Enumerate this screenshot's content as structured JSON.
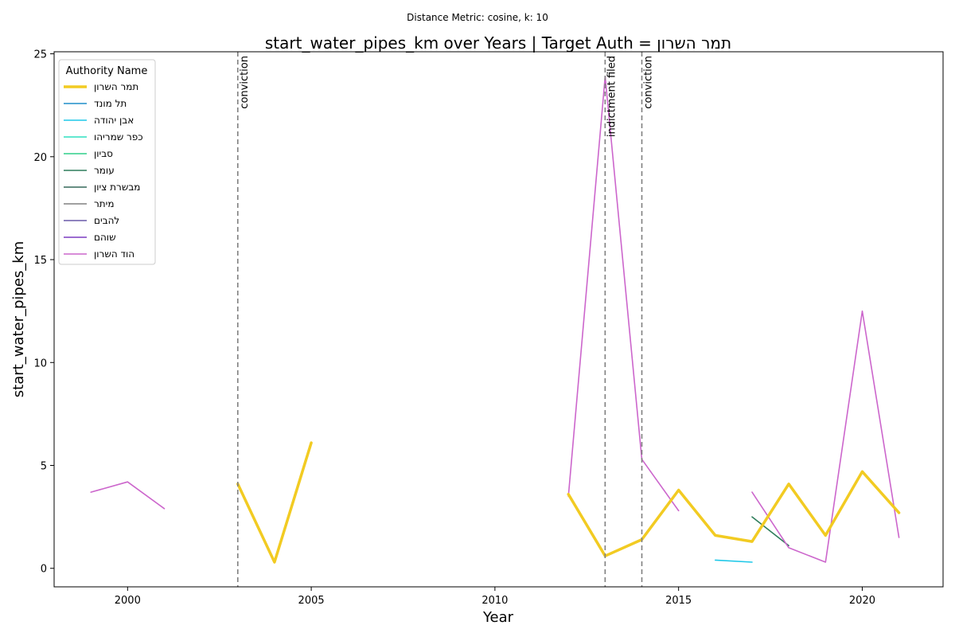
{
  "chart_data": {
    "type": "line",
    "suptitle": "Distance Metric: cosine, k: 10",
    "title": "start_water_pipes_km over Years | Target Auth = תמר השרון",
    "xlabel": "Year",
    "ylabel": "start_water_pipes_km",
    "xlim": [
      1998.0,
      2022.2
    ],
    "ylim": [
      -0.9,
      25.1
    ],
    "xticks": [
      2000,
      2005,
      2010,
      2015,
      2020
    ],
    "yticks": [
      0,
      5,
      10,
      15,
      20,
      25
    ],
    "grid": false,
    "legend": {
      "title": "Authority Name",
      "placement": "top-left"
    },
    "events": [
      {
        "year": 2003,
        "label": "conviction"
      },
      {
        "year": 2013,
        "label": "indictment filed"
      },
      {
        "year": 2014,
        "label": "conviction"
      }
    ],
    "series": [
      {
        "name": "תמר השרון",
        "color": "#f2cb22",
        "width": 3.5,
        "target": true,
        "segments": [
          [
            [
              2003,
              4.1
            ],
            [
              2004,
              0.3
            ],
            [
              2005,
              6.1
            ]
          ],
          [
            [
              2012,
              3.6
            ],
            [
              2013,
              0.6
            ],
            [
              2014,
              1.4
            ],
            [
              2015,
              3.8
            ],
            [
              2016,
              1.6
            ],
            [
              2017,
              1.3
            ],
            [
              2018,
              4.1
            ],
            [
              2019,
              1.6
            ],
            [
              2020,
              4.7
            ],
            [
              2021,
              2.7
            ]
          ]
        ]
      },
      {
        "name": "תל מונד",
        "color": "#1f8dc9",
        "width": 1.6,
        "segments": []
      },
      {
        "name": "אבן יהודה",
        "color": "#1fc8e8",
        "width": 1.6,
        "segments": [
          [
            [
              2016,
              0.4
            ],
            [
              2017,
              0.3
            ]
          ]
        ]
      },
      {
        "name": "כפר שמריהו",
        "color": "#2ee0c0",
        "width": 1.6,
        "segments": []
      },
      {
        "name": "סביון",
        "color": "#2fcf8a",
        "width": 1.6,
        "segments": []
      },
      {
        "name": "עומר",
        "color": "#2e7d5b",
        "width": 1.6,
        "segments": [
          [
            [
              2017,
              2.5
            ],
            [
              2018,
              1.1
            ]
          ]
        ]
      },
      {
        "name": "מבשרת ציון",
        "color": "#35685a",
        "width": 1.6,
        "segments": []
      },
      {
        "name": "מיתר",
        "color": "#808080",
        "width": 1.6,
        "segments": []
      },
      {
        "name": "להבים",
        "color": "#6a5aa8",
        "width": 1.6,
        "segments": []
      },
      {
        "name": "שוהם",
        "color": "#7b3cc0",
        "width": 1.6,
        "segments": []
      },
      {
        "name": "הוד השרון",
        "color": "#cc66cc",
        "width": 1.6,
        "segments": [
          [
            [
              1999,
              3.7
            ],
            [
              2000,
              4.2
            ],
            [
              2001,
              2.9
            ]
          ],
          [
            [
              2012,
              3.5
            ],
            [
              2013,
              23.9
            ],
            [
              2014,
              5.3
            ],
            [
              2015,
              2.8
            ]
          ],
          [
            [
              2017,
              3.7
            ],
            [
              2018,
              1.0
            ],
            [
              2019,
              0.3
            ],
            [
              2020,
              12.5
            ],
            [
              2021,
              1.5
            ]
          ]
        ]
      }
    ]
  }
}
